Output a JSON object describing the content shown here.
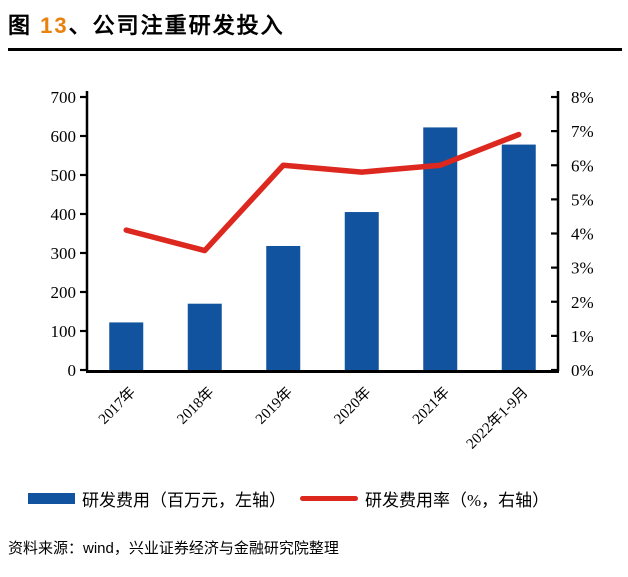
{
  "title": {
    "prefix": "图 ",
    "number": "13",
    "suffix": "、公司注重研发投入"
  },
  "colors": {
    "bar_blue": "#11539E",
    "line_red": "#DC281E",
    "title_number_orange": "#E8820C",
    "axis_black": "#000000"
  },
  "chart_data": {
    "type": "bar",
    "subtype": "bar+line combo",
    "categories": [
      "2017年",
      "2018年",
      "2019年",
      "2020年",
      "2021年",
      "2022年1-9月"
    ],
    "series": [
      {
        "name": "研发费用（百万元，左轴）",
        "type": "bar",
        "axis": "left",
        "values": [
          122,
          170,
          318,
          405,
          622,
          578
        ]
      },
      {
        "name": "研发费用率（%，右轴）",
        "type": "line",
        "axis": "right",
        "values": [
          4.1,
          3.5,
          6.0,
          5.8,
          6.0,
          6.9
        ]
      }
    ],
    "left_axis": {
      "min": 0,
      "max": 700,
      "step": 100,
      "tick_labels": [
        "700",
        "600",
        "500",
        "400",
        "300",
        "200",
        "100",
        "0"
      ]
    },
    "right_axis": {
      "min": 0,
      "max": 8,
      "step": 1,
      "tick_labels": [
        "8%",
        "7%",
        "6%",
        "5%",
        "4%",
        "3%",
        "2%",
        "1%",
        "0%"
      ]
    },
    "grid": false,
    "legend_position": "bottom",
    "x_label_rotation_deg": -45
  },
  "legend": {
    "bar_label": "研发费用（百万元，左轴）",
    "line_label": "研发费用率（%，右轴）"
  },
  "source": {
    "label": "资料来源：wind，兴业证券经济与金融研究院整理"
  }
}
